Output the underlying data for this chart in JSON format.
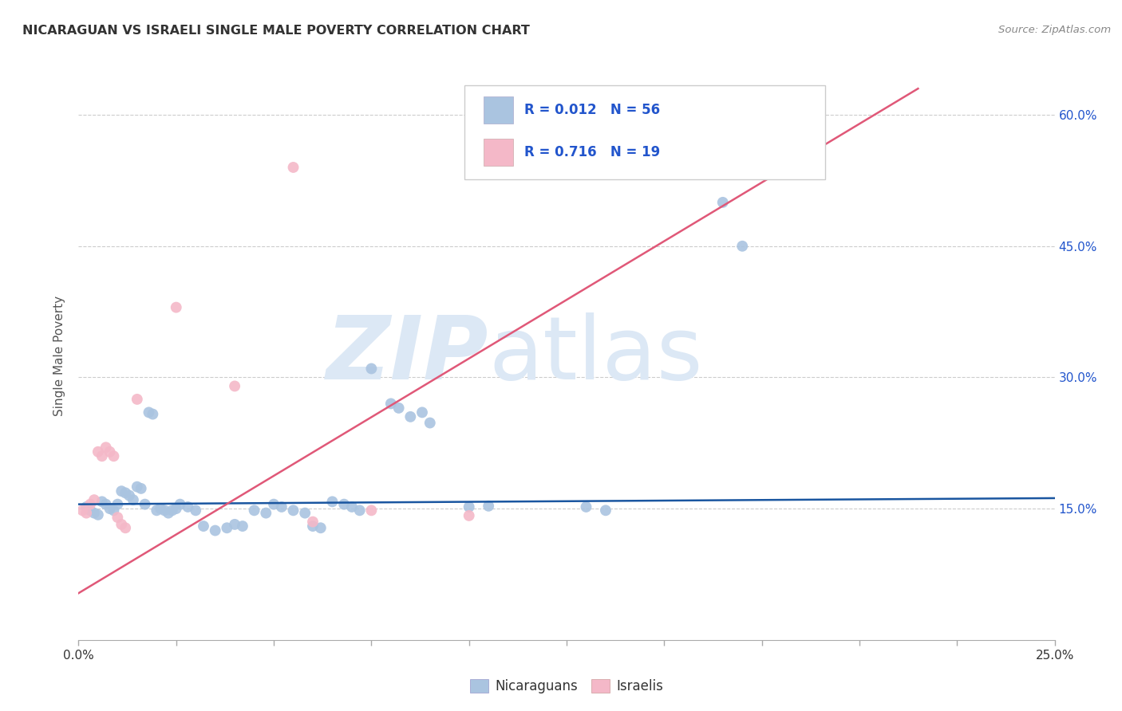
{
  "title": "NICARAGUAN VS ISRAELI SINGLE MALE POVERTY CORRELATION CHART",
  "source": "Source: ZipAtlas.com",
  "ylabel": "Single Male Poverty",
  "xlim": [
    0.0,
    0.25
  ],
  "ylim": [
    0.0,
    0.65
  ],
  "yticks": [
    0.15,
    0.3,
    0.45,
    0.6
  ],
  "ytick_labels_right": [
    "15.0%",
    "30.0%",
    "45.0%",
    "60.0%"
  ],
  "xticks_minor": [
    0.0,
    0.025,
    0.05,
    0.075,
    0.1,
    0.125,
    0.15,
    0.175,
    0.2,
    0.225,
    0.25
  ],
  "legend_r1": "R = 0.012",
  "legend_n1": "N = 56",
  "legend_r2": "R = 0.716",
  "legend_n2": "N = 19",
  "blue_color": "#aac4e0",
  "pink_color": "#f4b8c8",
  "blue_line_color": "#1a56a0",
  "pink_line_color": "#e05878",
  "legend_text_color": "#2255cc",
  "watermark_zip": "ZIP",
  "watermark_atlas": "atlas",
  "watermark_color": "#dce8f5",
  "background_color": "#ffffff",
  "grid_color": "#cccccc",
  "title_color": "#333333",
  "source_color": "#888888",
  "ylabel_color": "#555555",
  "nicaraguan_points": [
    [
      0.002,
      0.152
    ],
    [
      0.003,
      0.148
    ],
    [
      0.004,
      0.145
    ],
    [
      0.005,
      0.143
    ],
    [
      0.006,
      0.158
    ],
    [
      0.007,
      0.155
    ],
    [
      0.008,
      0.15
    ],
    [
      0.009,
      0.148
    ],
    [
      0.01,
      0.155
    ],
    [
      0.011,
      0.17
    ],
    [
      0.012,
      0.168
    ],
    [
      0.013,
      0.165
    ],
    [
      0.014,
      0.16
    ],
    [
      0.015,
      0.175
    ],
    [
      0.016,
      0.173
    ],
    [
      0.017,
      0.155
    ],
    [
      0.018,
      0.26
    ],
    [
      0.019,
      0.258
    ],
    [
      0.02,
      0.148
    ],
    [
      0.021,
      0.15
    ],
    [
      0.022,
      0.148
    ],
    [
      0.023,
      0.145
    ],
    [
      0.024,
      0.148
    ],
    [
      0.025,
      0.15
    ],
    [
      0.026,
      0.155
    ],
    [
      0.028,
      0.152
    ],
    [
      0.03,
      0.148
    ],
    [
      0.032,
      0.13
    ],
    [
      0.035,
      0.125
    ],
    [
      0.038,
      0.128
    ],
    [
      0.04,
      0.132
    ],
    [
      0.042,
      0.13
    ],
    [
      0.045,
      0.148
    ],
    [
      0.048,
      0.145
    ],
    [
      0.05,
      0.155
    ],
    [
      0.052,
      0.152
    ],
    [
      0.055,
      0.148
    ],
    [
      0.058,
      0.145
    ],
    [
      0.06,
      0.13
    ],
    [
      0.062,
      0.128
    ],
    [
      0.065,
      0.158
    ],
    [
      0.068,
      0.155
    ],
    [
      0.07,
      0.152
    ],
    [
      0.072,
      0.148
    ],
    [
      0.075,
      0.31
    ],
    [
      0.08,
      0.27
    ],
    [
      0.082,
      0.265
    ],
    [
      0.085,
      0.255
    ],
    [
      0.088,
      0.26
    ],
    [
      0.09,
      0.248
    ],
    [
      0.1,
      0.152
    ],
    [
      0.105,
      0.153
    ],
    [
      0.13,
      0.152
    ],
    [
      0.135,
      0.148
    ],
    [
      0.165,
      0.5
    ],
    [
      0.17,
      0.45
    ]
  ],
  "israeli_points": [
    [
      0.001,
      0.148
    ],
    [
      0.002,
      0.145
    ],
    [
      0.003,
      0.155
    ],
    [
      0.004,
      0.16
    ],
    [
      0.005,
      0.215
    ],
    [
      0.006,
      0.21
    ],
    [
      0.007,
      0.22
    ],
    [
      0.008,
      0.215
    ],
    [
      0.009,
      0.21
    ],
    [
      0.01,
      0.14
    ],
    [
      0.011,
      0.132
    ],
    [
      0.012,
      0.128
    ],
    [
      0.015,
      0.275
    ],
    [
      0.025,
      0.38
    ],
    [
      0.04,
      0.29
    ],
    [
      0.055,
      0.54
    ],
    [
      0.06,
      0.135
    ],
    [
      0.075,
      0.148
    ],
    [
      0.1,
      0.142
    ]
  ],
  "blue_trend_x": [
    0.0,
    0.25
  ],
  "blue_trend_y": [
    0.155,
    0.162
  ],
  "pink_trend_x": [
    -0.005,
    0.215
  ],
  "pink_trend_y": [
    0.04,
    0.63
  ]
}
